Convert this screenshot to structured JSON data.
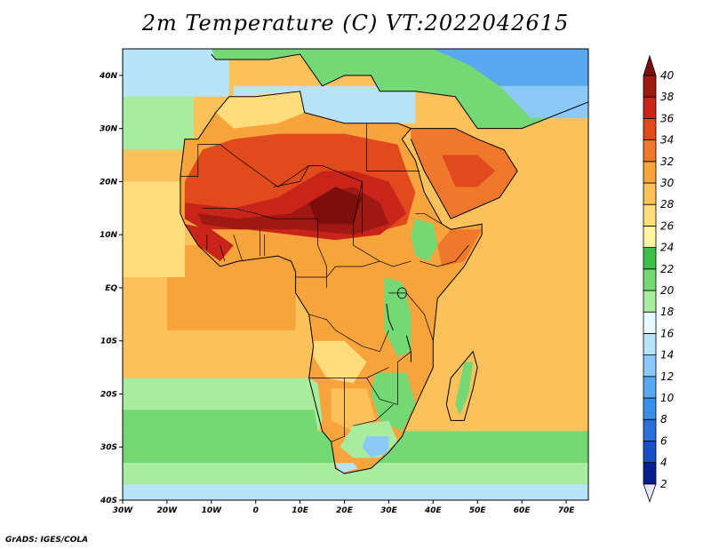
{
  "title": "2m Temperature (C) VT:2022042615",
  "credit": "GrADS: IGES/COLA",
  "map": {
    "lon_range": [
      -30,
      75
    ],
    "lat_range": [
      -40,
      45
    ],
    "lon_ticks": [
      {
        "value": -30,
        "label": "30W"
      },
      {
        "value": -20,
        "label": "20W"
      },
      {
        "value": -10,
        "label": "10W"
      },
      {
        "value": 0,
        "label": "0"
      },
      {
        "value": 10,
        "label": "10E"
      },
      {
        "value": 20,
        "label": "20E"
      },
      {
        "value": 30,
        "label": "30E"
      },
      {
        "value": 40,
        "label": "40E"
      },
      {
        "value": 50,
        "label": "50E"
      },
      {
        "value": 60,
        "label": "60E"
      },
      {
        "value": 70,
        "label": "70E"
      }
    ],
    "lat_ticks": [
      {
        "value": 40,
        "label": "40N"
      },
      {
        "value": 30,
        "label": "30N"
      },
      {
        "value": 20,
        "label": "20N"
      },
      {
        "value": 10,
        "label": "10N"
      },
      {
        "value": 0,
        "label": "EQ"
      },
      {
        "value": -10,
        "label": "10S"
      },
      {
        "value": -20,
        "label": "20S"
      },
      {
        "value": -30,
        "label": "30S"
      },
      {
        "value": -40,
        "label": "40S"
      }
    ]
  },
  "colorbar": {
    "levels": [
      2,
      4,
      6,
      8,
      10,
      12,
      14,
      16,
      18,
      20,
      22,
      24,
      26,
      28,
      30,
      32,
      34,
      36,
      38,
      40
    ],
    "colors": [
      "#e8e8ff",
      "#0a1f8f",
      "#1a4fc4",
      "#2a6fdc",
      "#3a8fe8",
      "#5aa8f0",
      "#8cc8f8",
      "#b8e4fa",
      "#e8fafe",
      "#a8eca0",
      "#74d874",
      "#3cc048",
      "#fff4a0",
      "#ffdc7c",
      "#fbc25c",
      "#f8a43c",
      "#f0782c",
      "#e04a1c",
      "#c8241a",
      "#a01812",
      "#7c0e0e"
    ]
  }
}
